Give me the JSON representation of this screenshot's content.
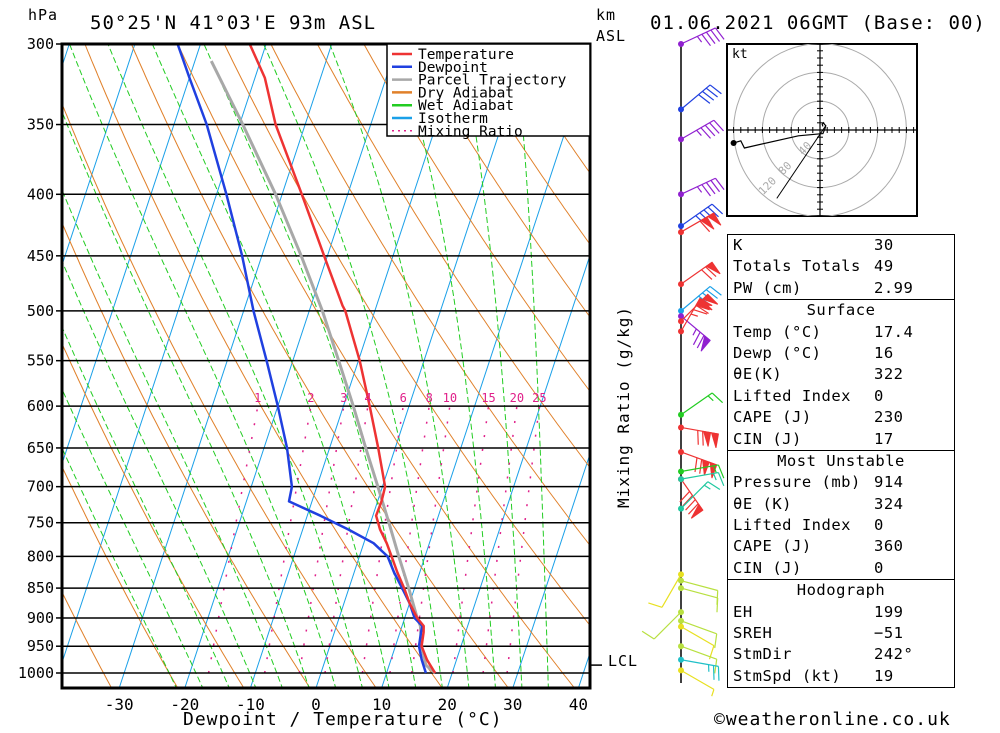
{
  "header": {
    "location": "50°25'N  41°03'E  93m  ASL",
    "datetime": "01.06.2021  06GMT  (Base: 00)",
    "pressure_unit": "hPa",
    "height_unit_line1": "km",
    "height_unit_line2": "ASL"
  },
  "footer": {
    "copyright": "©weatheronline.co.uk"
  },
  "chart_data": {
    "type": "line",
    "title": "Skew-T log-P sounding",
    "xlabel": "Dewpoint / Temperature (°C)",
    "ylabel": "hPa",
    "secondary_label": "Mixing Ratio (g/kg)",
    "xlim": [
      -40,
      40
    ],
    "ylim_hpa": [
      1000,
      300
    ],
    "x_ticks": [
      "-30",
      "-20",
      "-10",
      "0",
      "10",
      "20",
      "30",
      "40"
    ],
    "x_tick_values": [
      -30,
      -20,
      -10,
      0,
      10,
      20,
      30,
      40
    ],
    "y_ticks": [
      "300",
      "350",
      "400",
      "450",
      "500",
      "550",
      "600",
      "650",
      "700",
      "750",
      "800",
      "850",
      "900",
      "950",
      "1000"
    ],
    "y_tick_values": [
      300,
      350,
      400,
      450,
      500,
      550,
      600,
      650,
      700,
      750,
      800,
      850,
      900,
      950,
      1000
    ],
    "mixing_ratio_labels": [
      "1",
      "2",
      "3",
      "4",
      "6",
      "8",
      "10",
      "15",
      "20",
      "25"
    ],
    "mixing_ratio_values": [
      1,
      2,
      3,
      4,
      6,
      8,
      10,
      15,
      20,
      25
    ],
    "lcl_label": "LCL",
    "lcl_pressure": 985,
    "legend": [
      {
        "name": "Temperature",
        "color": "#ee3333",
        "style": "solid"
      },
      {
        "name": "Dewpoint",
        "color": "#2040e0",
        "style": "solid"
      },
      {
        "name": "Parcel Trajectory",
        "color": "#a8a8a8",
        "style": "solid"
      },
      {
        "name": "Dry Adiabat",
        "color": "#e0802a",
        "style": "solid"
      },
      {
        "name": "Wet Adiabat",
        "color": "#22cc22",
        "style": "solid"
      },
      {
        "name": "Isotherm",
        "color": "#1aa0e8",
        "style": "solid"
      },
      {
        "name": "Mixing Ratio",
        "color": "#e0208a",
        "style": "dotted"
      }
    ],
    "legend_position": "top-right",
    "series": [
      {
        "name": "Temperature",
        "pressure": [
          1000,
          975,
          950,
          925,
          914,
          900,
          875,
          850,
          825,
          800,
          780,
          760,
          740,
          720,
          700,
          650,
          600,
          550,
          500,
          495,
          450,
          400,
          350,
          320,
          300
        ],
        "values": [
          17.4,
          15.5,
          14.0,
          13.6,
          13.3,
          11.9,
          10.0,
          8.4,
          6.6,
          4.9,
          3.5,
          1.8,
          0.5,
          0.6,
          0.4,
          -2.6,
          -6.0,
          -9.8,
          -14.5,
          -15.2,
          -20.5,
          -27.0,
          -34.5,
          -38.5,
          -42.5
        ]
      },
      {
        "name": "Dewpoint",
        "pressure": [
          1000,
          975,
          950,
          925,
          914,
          900,
          875,
          850,
          825,
          800,
          780,
          760,
          740,
          720,
          700,
          650,
          600,
          550,
          500,
          450,
          400,
          350,
          320,
          300
        ],
        "values": [
          16.0,
          14.7,
          13.6,
          13.2,
          13.1,
          11.5,
          10.0,
          8.1,
          6.1,
          4.3,
          1.5,
          -3.0,
          -8.0,
          -13.5,
          -13.8,
          -16.5,
          -20.0,
          -24.0,
          -28.5,
          -33.0,
          -38.5,
          -45.0,
          -50.0,
          -53.5
        ]
      },
      {
        "name": "Parcel Trajectory",
        "pressure": [
          1000,
          985,
          950,
          914,
          900,
          850,
          800,
          750,
          700,
          650,
          600,
          550,
          500,
          450,
          400,
          350,
          310
        ],
        "values": [
          17.4,
          15.6,
          14.0,
          12.8,
          11.9,
          9.1,
          6.0,
          2.8,
          -0.7,
          -4.5,
          -8.5,
          -13.0,
          -18.0,
          -24.0,
          -31.0,
          -39.5,
          -47.5
        ]
      }
    ],
    "winds": [
      {
        "pressure": 300,
        "dir": 245,
        "speed": 45,
        "color": "#9020d0"
      },
      {
        "pressure": 340,
        "dir": 230,
        "speed": 40,
        "color": "#2040e0"
      },
      {
        "pressure": 360,
        "dir": 240,
        "speed": 45,
        "color": "#9020d0"
      },
      {
        "pressure": 400,
        "dir": 245,
        "speed": 45,
        "color": "#9020d0"
      },
      {
        "pressure": 425,
        "dir": 235,
        "speed": 45,
        "color": "#2040e0"
      },
      {
        "pressure": 430,
        "dir": 240,
        "speed": 110,
        "color": "#ee3333"
      },
      {
        "pressure": 475,
        "dir": 235,
        "speed": 70,
        "color": "#ee3333"
      },
      {
        "pressure": 500,
        "dir": 230,
        "speed": 40,
        "color": "#1aa0e8"
      },
      {
        "pressure": 505,
        "dir": 310,
        "speed": 75,
        "color": "#9020d0"
      },
      {
        "pressure": 510,
        "dir": 225,
        "speed": 110,
        "color": "#ee3333"
      },
      {
        "pressure": 520,
        "dir": 210,
        "speed": 75,
        "color": "#ee3333"
      },
      {
        "pressure": 610,
        "dir": 235,
        "speed": 15,
        "color": "#22cc22"
      },
      {
        "pressure": 625,
        "dir": 280,
        "speed": 120,
        "color": "#ee3333"
      },
      {
        "pressure": 655,
        "dir": 290,
        "speed": 120,
        "color": "#ee3333"
      },
      {
        "pressure": 680,
        "dir": 260,
        "speed": 15,
        "color": "#22cc22"
      },
      {
        "pressure": 690,
        "dir": 325,
        "speed": 90,
        "color": "#ee3333"
      },
      {
        "pressure": 690,
        "dir": 260,
        "speed": 15,
        "color": "#20c8a0"
      },
      {
        "pressure": 730,
        "dir": 225,
        "speed": 15,
        "color": "#20c8a0"
      },
      {
        "pressure": 828,
        "dir": 30,
        "speed": 10,
        "color": "#e8e020"
      },
      {
        "pressure": 838,
        "dir": 285,
        "speed": 10,
        "color": "#b8e040"
      },
      {
        "pressure": 850,
        "dir": 285,
        "speed": 10,
        "color": "#b8e040"
      },
      {
        "pressure": 890,
        "dir": 45,
        "speed": 10,
        "color": "#b8e040"
      },
      {
        "pressure": 905,
        "dir": 290,
        "speed": 10,
        "color": "#b8e040"
      },
      {
        "pressure": 915,
        "dir": 300,
        "speed": 10,
        "color": "#e8e020"
      },
      {
        "pressure": 950,
        "dir": 290,
        "speed": 10,
        "color": "#b8e040"
      },
      {
        "pressure": 975,
        "dir": 280,
        "speed": 25,
        "color": "#20c0c8"
      },
      {
        "pressure": 995,
        "dir": 300,
        "speed": 5,
        "color": "#e8e020"
      }
    ],
    "hodograph": {
      "unit_label": "kt",
      "ring_labels": [
        "40",
        "80",
        "120"
      ],
      "ring_values": [
        40,
        80,
        120
      ],
      "trace_u": [
        4,
        3,
        5,
        6,
        8,
        7,
        4,
        -30,
        -105,
        -110,
        -120
      ],
      "trace_v": [
        5,
        8,
        10,
        8,
        6,
        2,
        -5,
        -8,
        -25,
        -15,
        -18
      ],
      "storm_motion_u": [
        -60
      ],
      "storm_motion_v": [
        -95
      ]
    }
  },
  "indices": {
    "general": [
      {
        "label": "K",
        "value": "30"
      },
      {
        "label": "Totals Totals",
        "value": "49"
      },
      {
        "label": "PW (cm)",
        "value": "2.99"
      }
    ],
    "surface": {
      "title": "Surface",
      "rows": [
        {
          "label": "Temp (°C)",
          "value": "17.4"
        },
        {
          "label": "Dewp (°C)",
          "value": "16"
        },
        {
          "label": "θE(K)",
          "value": "322"
        },
        {
          "label": "Lifted Index",
          "value": "0"
        },
        {
          "label": "CAPE (J)",
          "value": "230"
        },
        {
          "label": "CIN (J)",
          "value": "17"
        }
      ]
    },
    "most_unstable": {
      "title": "Most Unstable",
      "rows": [
        {
          "label": "Pressure (mb)",
          "value": "914"
        },
        {
          "label": "θE (K)",
          "value": "324"
        },
        {
          "label": "Lifted Index",
          "value": "0"
        },
        {
          "label": "CAPE (J)",
          "value": "360"
        },
        {
          "label": "CIN (J)",
          "value": "0"
        }
      ]
    },
    "hodograph": {
      "title": "Hodograph",
      "rows": [
        {
          "label": "EH",
          "value": "199"
        },
        {
          "label": "SREH",
          "value": "−51"
        },
        {
          "label": "StmDir",
          "value": "242°"
        },
        {
          "label": "StmSpd (kt)",
          "value": "19"
        }
      ]
    }
  }
}
